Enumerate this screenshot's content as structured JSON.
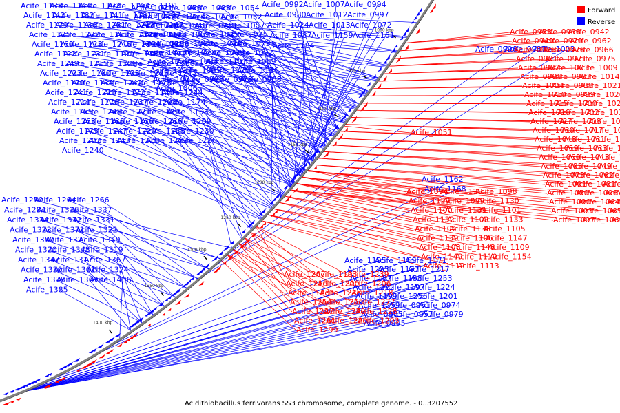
{
  "caption": "Acidithiobacillus ferrivorans SS3 chromosome, complete genome. - 0..3207552",
  "legend": {
    "items": [
      {
        "label": "Forward",
        "color": "#ff0000"
      },
      {
        "label": "Reverse",
        "color": "#0000ff"
      }
    ]
  },
  "colors": {
    "forward": "#ff0000",
    "reverse": "#0000ff",
    "backbone": "#808080"
  },
  "ticks": [
    "1000 kbp",
    "1050 kbp",
    "1100 kbp",
    "1150 kbp",
    "1200 kbp",
    "1250 kbp",
    "1300 kbp",
    "1350 kbp",
    "1400 kbp"
  ],
  "reverse_labels": [
    "Acife_1183",
    "Acife_1144",
    "Acife_1192",
    "Acife_1143",
    "Acife_1191",
    "Acife_1142",
    "Acife_1182",
    "Acife_1141",
    "Acife_1181",
    "Acife_1137",
    "Acife_1179",
    "Acife_1136",
    "Acife_1251",
    "Acife_1213",
    "Acife_1167",
    "Acife_1125",
    "Acife_1232",
    "Acife_1163",
    "Acife_1124",
    "Acife_1198",
    "Acife_1160",
    "Acife_1123",
    "Acife_1246",
    "Acife_1194",
    "Acife_1158",
    "Acife_1122",
    "Acife_1231",
    "Acife_1190",
    "Acife_1157",
    "Acife_1121",
    "Acife_1249",
    "Acife_1215",
    "Acife_1156",
    "Acife_1118",
    "Acife_1260",
    "Acife_1223",
    "Acife_1180",
    "Acife_1135",
    "Acife_1245",
    "Acife_1212",
    "Acife_1170",
    "Acife_1134",
    "Acife_1242",
    "Acife_1178",
    "Acife_1152",
    "Acife_1241",
    "Acife_1210",
    "Acife_1172",
    "Acife_1140",
    "Acife_1244",
    "Acife_1214",
    "Acife_1176",
    "Acife_1237",
    "Acife_1208",
    "Acife_1174",
    "Acife_1155",
    "Acife_1248",
    "Acife_1221",
    "Acife_1189",
    "Acife_1153",
    "Acife_1263",
    "Acife_1186",
    "Acife_1166",
    "Acife_1236",
    "Acife_1209",
    "Acife_1175",
    "Acife_1247",
    "Acife_1220",
    "Acife_1258",
    "Acife_1230",
    "Acife_1202",
    "Acife_1243",
    "Acife_1216",
    "Acife_1252",
    "Acife_1226",
    "Acife_1240",
    "Acife_1250",
    "Acife_1264",
    "Acife_1266",
    "Acife_1284",
    "Acife_1316",
    "Acife_1337",
    "Acife_1334",
    "Acife_1332",
    "Acife_1331",
    "Acife_1323",
    "Acife_1371",
    "Acife_1322",
    "Acife_1350",
    "Acife_1321",
    "Acife_1349",
    "Acife_1320",
    "Acife_1348",
    "Acife_1319",
    "Acife_1347",
    "Acife_1317",
    "Acife_1367",
    "Acife_1330",
    "Acife_1361",
    "Acife_1324",
    "Acife_1338",
    "Acife_1369",
    "Acife_1406",
    "Acife_1385",
    "Acife_1071",
    "Acife_1056",
    "Acife_1083",
    "Acife_1054",
    "Acife_1082",
    "Acife_1053",
    "Acife_1079",
    "Acife_1052",
    "Acife_1070",
    "Acife_1046",
    "Acife_1078",
    "Acife_1057",
    "Acife_1034",
    "Acife_1069",
    "Acife_1045",
    "Acife_1025",
    "Acife_1088",
    "Acife_1068",
    "Acife_1044",
    "Acife_1075",
    "Acife_1055",
    "Acife_1077",
    "Acife_1058",
    "Acife_1092",
    "Acife_1076",
    "Acife_1084",
    "Acife_1107",
    "Acife_1089",
    "Acife_1117",
    "Acife_1095",
    "Acife_1120",
    "Acife_1126",
    "Acife_1022",
    "Acife_0993",
    "Acife_0978",
    "Acife_0968",
    "Acife_1006",
    "Acife_0992",
    "Acife_1007",
    "Acife_0994",
    "Acife_0980",
    "Acife_1012",
    "Acife_0997",
    "Acife_1024",
    "Acife_1013",
    "Acife_1072",
    "Acife_1087",
    "Acife_1159",
    "Acife_1161",
    "Acife_1184",
    "Acife_1162",
    "Acife_1168",
    "Acife_1195",
    "Acife_1169",
    "Acife_1171",
    "Acife_1225",
    "Acife_1177",
    "Acife_1217",
    "Acife_1187",
    "Acife_1188",
    "Acife_1253",
    "Acife_1222",
    "Acife_1197",
    "Acife_1224",
    "Acife_1199",
    "Acife_1256",
    "Acife_1201",
    "Acife_1259",
    "Acife_0961",
    "Acife_0974",
    "Acife_0965",
    "Acife_0957",
    "Acife_0979",
    "Acife_0995",
    "Acife_0996",
    "Acife_0987",
    "Acife_1023"
  ],
  "forward_labels": [
    "Acife_0955",
    "Acife_0956",
    "Acife_0942",
    "Acife_0949",
    "Acife_0970",
    "Acife_0962",
    "Acife_0986",
    "Acife_0976",
    "Acife_0966",
    "Acife_0981",
    "Acife_0971",
    "Acife_0975",
    "Acife_0982",
    "Acife_1003",
    "Acife_1009",
    "Acife_0998",
    "Acife_0983",
    "Acife_1014",
    "Acife_1004",
    "Acife_0988",
    "Acife_1021",
    "Acife_1010",
    "Acife_0999",
    "Acife_1026",
    "Acife_1015",
    "Acife_1000",
    "Acife_1029",
    "Acife_1016",
    "Acife_1002",
    "Acife_1039",
    "Acife_1027",
    "Acife_1008",
    "Acife_1047",
    "Acife_1030",
    "Acife_1017",
    "Acife_1061",
    "Acife_1048",
    "Acife_1031",
    "Acife_1018",
    "Acife_1059",
    "Acife_1033",
    "Acife_1080",
    "Acife_1060",
    "Acife_1043",
    "Acife_1028",
    "Acife_1085",
    "Acife_1049",
    "Acife_1032",
    "Acife_1073",
    "Acife_1062",
    "Acife_1036",
    "Acife_1091",
    "Acife_1081",
    "Acife_1063",
    "Acife_1050",
    "Acife_1096",
    "Acife_1103",
    "Acife_1090",
    "Acife_1064",
    "Acife_1111",
    "Acife_1093",
    "Acife_1065",
    "Acife_1119",
    "Acife_1097",
    "Acife_1066",
    "Acife_1127",
    "Acife_1074",
    "Acife_1128",
    "Acife_1098",
    "Acife_1129",
    "Acife_1099",
    "Acife_1130",
    "Acife_1100",
    "Acife_1131",
    "Acife_1101",
    "Acife_1132",
    "Acife_1102",
    "Acife_1133",
    "Acife_1104",
    "Acife_1138",
    "Acife_1105",
    "Acife_1139",
    "Acife_1106",
    "Acife_1147",
    "Acife_1108",
    "Acife_1148",
    "Acife_1109",
    "Acife_1149",
    "Acife_1110",
    "Acife_1154",
    "Acife_1112",
    "Acife_1113",
    "Acife_1051",
    "Acife_1207",
    "Acife_1193",
    "Acife_1239",
    "Acife_1219",
    "Acife_1200",
    "Acife_1206",
    "Acife_1173",
    "Acife_1238",
    "Acife_1218",
    "Acife_1254",
    "Acife_1255",
    "Acife_1277",
    "Acife_1227",
    "Acife_1279",
    "Acife_1228",
    "Acife_1261",
    "Acife_1229",
    "Acife_1203",
    "Acife_1299"
  ]
}
